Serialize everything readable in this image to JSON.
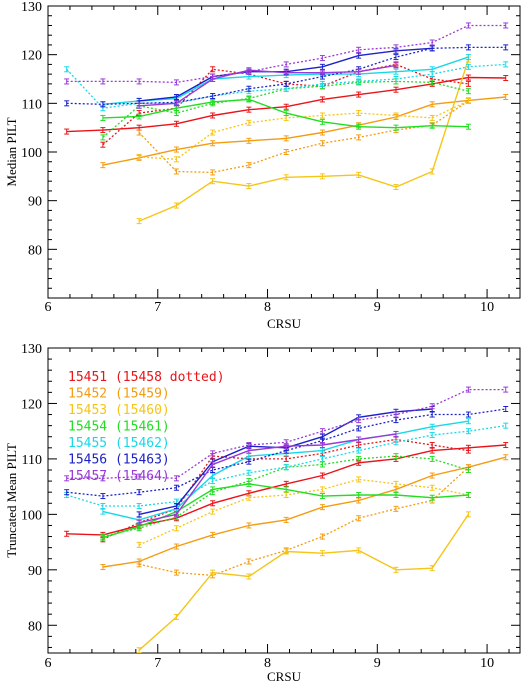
{
  "chart_data": [
    {
      "type": "line",
      "ylabel": "Median PILT",
      "xlabel": "CRSU",
      "xlim": [
        6.0,
        10.3
      ],
      "ylim": [
        70,
        130
      ],
      "xticks": [
        6,
        7,
        8,
        9,
        10
      ],
      "yticks": [
        80,
        90,
        100,
        110,
        120,
        130
      ],
      "grid": false,
      "legend_position": "none",
      "series": [
        {
          "color": "#e8141a",
          "style": "solid",
          "x": [
            6.17,
            6.5,
            6.83,
            7.17,
            7.5,
            7.83,
            8.17,
            8.5,
            8.83,
            9.17,
            9.5,
            9.83,
            10.17
          ],
          "y": [
            104.2,
            104.5,
            105.0,
            105.8,
            107.5,
            108.7,
            109.3,
            110.8,
            111.8,
            112.8,
            114.0,
            115.3,
            115.2
          ]
        },
        {
          "color": "#e8141a",
          "style": "dotted",
          "x": [
            6.5,
            6.83,
            7.17,
            7.5,
            7.83,
            8.17,
            8.5,
            8.83,
            9.17,
            9.5,
            9.83
          ],
          "y": [
            101.5,
            108.0,
            109.0,
            117.0,
            116.0,
            114.0,
            113.5,
            116.5,
            118.0,
            115.0,
            114.0
          ]
        },
        {
          "color": "#f39c12",
          "style": "solid",
          "x": [
            6.5,
            6.83,
            7.17,
            7.5,
            7.83,
            8.17,
            8.5,
            8.83,
            9.17,
            9.5,
            9.83,
            10.17
          ],
          "y": [
            97.3,
            98.8,
            100.5,
            101.8,
            102.3,
            102.8,
            104.0,
            105.5,
            107.2,
            109.8,
            110.6,
            111.3
          ]
        },
        {
          "color": "#f39c12",
          "style": "dotted",
          "x": [
            6.83,
            7.17,
            7.5,
            7.83,
            8.17,
            8.5,
            8.83,
            9.17,
            9.5,
            9.83
          ],
          "y": [
            104.0,
            96.0,
            95.8,
            97.3,
            100.0,
            101.8,
            103.0,
            104.5,
            105.5,
            110.5
          ]
        },
        {
          "color": "#f5c518",
          "style": "solid",
          "x": [
            6.83,
            7.17,
            7.5,
            7.83,
            8.17,
            8.5,
            8.83,
            9.17,
            9.5,
            9.83
          ],
          "y": [
            85.8,
            89.0,
            94.0,
            93.0,
            94.8,
            95.0,
            95.3,
            92.8,
            96.0,
            119.0
          ]
        },
        {
          "color": "#f5c518",
          "style": "dotted",
          "x": [
            6.83,
            7.17,
            7.5,
            7.83,
            8.17,
            8.5,
            8.83,
            9.17,
            9.5,
            9.83
          ],
          "y": [
            99.0,
            98.5,
            104.0,
            106.0,
            107.0,
            107.5,
            108.0,
            107.5,
            107.0,
            110.5
          ]
        },
        {
          "color": "#22dd22",
          "style": "solid",
          "x": [
            6.5,
            6.83,
            7.17,
            7.5,
            7.83,
            8.17,
            8.5,
            8.83,
            9.17,
            9.5,
            9.83
          ],
          "y": [
            107.0,
            107.3,
            109.0,
            110.3,
            110.8,
            108.0,
            106.2,
            105.2,
            105.0,
            105.4,
            105.2
          ]
        },
        {
          "color": "#22dd22",
          "style": "dotted",
          "x": [
            6.5,
            6.83,
            7.17,
            7.5,
            7.83,
            8.17,
            8.5,
            8.83,
            9.17,
            9.5,
            9.83
          ],
          "y": [
            103.0,
            109.5,
            108.0,
            110.0,
            111.0,
            113.0,
            113.5,
            114.3,
            114.5,
            114.3,
            112.5
          ]
        },
        {
          "color": "#18d8e8",
          "style": "solid",
          "x": [
            6.5,
            6.83,
            7.17,
            7.5,
            7.83,
            8.17,
            8.5,
            8.83,
            9.17,
            9.5,
            9.83
          ],
          "y": [
            109.8,
            110.5,
            111.0,
            115.0,
            115.5,
            115.8,
            116.0,
            116.0,
            116.5,
            117.0,
            119.5
          ]
        },
        {
          "color": "#18d8e8",
          "style": "dotted",
          "x": [
            6.17,
            6.5,
            6.83,
            7.17,
            7.5,
            7.83,
            8.17,
            8.5,
            8.83,
            9.17,
            9.5,
            9.83,
            10.17
          ],
          "y": [
            117.0,
            109.0,
            110.0,
            110.0,
            111.5,
            112.5,
            113.0,
            114.0,
            114.5,
            115.0,
            116.0,
            117.5,
            118.0
          ]
        },
        {
          "color": "#1c22c8",
          "style": "solid",
          "x": [
            6.83,
            7.17,
            7.5,
            7.83,
            8.17,
            8.5,
            8.83,
            9.17,
            9.5
          ],
          "y": [
            110.5,
            111.3,
            115.5,
            116.5,
            116.5,
            117.5,
            119.8,
            120.8,
            121.3
          ]
        },
        {
          "color": "#1c22c8",
          "style": "dotted",
          "x": [
            6.17,
            6.5,
            6.83,
            7.17,
            7.5,
            7.83,
            8.17,
            8.5,
            8.83,
            9.17,
            9.5,
            9.83,
            10.17
          ],
          "y": [
            110.0,
            109.8,
            110.0,
            110.2,
            111.5,
            113.0,
            114.0,
            115.5,
            117.0,
            119.5,
            121.3,
            121.5,
            121.5
          ]
        },
        {
          "color": "#9a3ad6",
          "style": "solid",
          "x": [
            6.83,
            7.17,
            7.5,
            7.83,
            8.17,
            8.5,
            8.83,
            9.17
          ],
          "y": [
            109.5,
            110.0,
            115.0,
            116.8,
            116.3,
            116.3,
            116.5,
            117.8
          ]
        },
        {
          "color": "#9a3ad6",
          "style": "dotted",
          "x": [
            6.17,
            6.5,
            6.83,
            7.17,
            7.5,
            7.83,
            8.17,
            8.5,
            8.83,
            9.17,
            9.5,
            9.83,
            10.17
          ],
          "y": [
            114.5,
            114.5,
            114.5,
            114.3,
            115.5,
            116.5,
            118.0,
            119.3,
            121.0,
            121.5,
            122.5,
            126.0,
            126.0
          ]
        }
      ]
    },
    {
      "type": "line",
      "ylabel": "Truncated Mean PILT",
      "xlabel": "CRSU",
      "xlim": [
        6.0,
        10.3
      ],
      "ylim": [
        75,
        130
      ],
      "xticks": [
        6,
        7,
        8,
        9,
        10
      ],
      "yticks": [
        80,
        90,
        100,
        110,
        120,
        130
      ],
      "grid": false,
      "legend_position": "top-left",
      "series": [
        {
          "name": "15451 (15458 dotted)",
          "color": "#e8141a",
          "style": "solid",
          "x": [
            6.17,
            6.5,
            6.83,
            7.17,
            7.5,
            7.83,
            8.17,
            8.5,
            8.83,
            9.17,
            9.5,
            9.83,
            10.17
          ],
          "y": [
            96.5,
            96.3,
            98.0,
            99.3,
            102.0,
            103.8,
            105.5,
            107.0,
            109.3,
            110.0,
            111.5,
            112.0,
            112.5
          ]
        },
        {
          "name": "",
          "color": "#e8141a",
          "style": "dotted",
          "x": [
            6.5,
            6.83,
            7.17,
            7.5,
            7.83,
            8.17,
            8.5,
            8.83,
            9.17,
            9.5,
            9.83
          ],
          "y": [
            95.5,
            98.5,
            101.0,
            110.5,
            110.0,
            110.0,
            111.0,
            112.5,
            113.5,
            112.5,
            111.5
          ]
        },
        {
          "name": "15452 (15459)",
          "color": "#f39c12",
          "style": "solid",
          "x": [
            6.5,
            6.83,
            7.17,
            7.5,
            7.83,
            8.17,
            8.5,
            8.83,
            9.17,
            9.5,
            9.83,
            10.17
          ],
          "y": [
            90.5,
            91.5,
            94.2,
            96.3,
            98.0,
            99.0,
            101.3,
            102.5,
            104.5,
            107.0,
            108.5,
            110.3
          ]
        },
        {
          "name": "",
          "color": "#f39c12",
          "style": "dotted",
          "x": [
            6.83,
            7.17,
            7.5,
            7.83,
            8.17,
            8.5,
            8.83,
            9.17,
            9.5,
            9.83
          ],
          "y": [
            91.0,
            89.5,
            89.0,
            91.5,
            93.5,
            96.0,
            99.3,
            101.0,
            102.5,
            108.5
          ]
        },
        {
          "name": "15453 (15460)",
          "color": "#f5c518",
          "style": "solid",
          "x": [
            6.83,
            7.17,
            7.5,
            7.83,
            8.17,
            8.5,
            8.83,
            9.17,
            9.5,
            9.83
          ],
          "y": [
            75.5,
            81.5,
            89.5,
            88.8,
            93.3,
            93.0,
            93.5,
            90.0,
            90.3,
            100.0
          ]
        },
        {
          "name": "",
          "color": "#f5c518",
          "style": "dotted",
          "x": [
            6.83,
            7.17,
            7.5,
            7.83,
            8.17,
            8.5,
            8.83,
            9.17,
            9.5,
            9.83
          ],
          "y": [
            94.5,
            97.5,
            100.5,
            103.0,
            103.5,
            104.5,
            106.3,
            105.5,
            104.8,
            103.5
          ]
        },
        {
          "name": "15454 (15461)",
          "color": "#22dd22",
          "style": "solid",
          "x": [
            6.5,
            6.83,
            7.17,
            7.5,
            7.83,
            8.17,
            8.5,
            8.83,
            9.17,
            9.5,
            9.83
          ],
          "y": [
            95.8,
            97.8,
            100.5,
            104.5,
            105.5,
            104.5,
            103.3,
            103.5,
            103.5,
            103.0,
            103.5
          ]
        },
        {
          "name": "",
          "color": "#22dd22",
          "style": "dotted",
          "x": [
            6.5,
            6.83,
            7.17,
            7.5,
            7.83,
            8.17,
            8.5,
            8.83,
            9.17,
            9.5,
            9.83
          ],
          "y": [
            96.0,
            97.5,
            99.5,
            104.0,
            106.0,
            108.5,
            109.0,
            110.0,
            110.5,
            110.0,
            108.0
          ]
        },
        {
          "name": "15455 (15462)",
          "color": "#18d8e8",
          "style": "solid",
          "x": [
            6.5,
            6.83,
            7.17,
            7.5,
            7.83,
            8.17,
            8.5,
            8.83,
            9.17,
            9.5,
            9.83
          ],
          "y": [
            100.5,
            99.0,
            101.0,
            107.0,
            110.5,
            111.0,
            111.5,
            113.5,
            114.5,
            115.8,
            116.8
          ]
        },
        {
          "name": "",
          "color": "#18d8e8",
          "style": "dotted",
          "x": [
            6.17,
            6.5,
            6.83,
            7.17,
            7.5,
            7.83,
            8.17,
            8.5,
            8.83,
            9.17,
            9.5,
            9.83,
            10.17
          ],
          "y": [
            103.5,
            101.5,
            101.5,
            102.3,
            106.0,
            107.5,
            108.5,
            110.0,
            111.5,
            113.0,
            114.3,
            115.0,
            116.0
          ]
        },
        {
          "name": "15456 (15463)",
          "color": "#1c22c8",
          "style": "solid",
          "x": [
            6.83,
            7.17,
            7.5,
            7.83,
            8.17,
            8.5,
            8.83,
            9.17,
            9.5
          ],
          "y": [
            100.0,
            101.5,
            109.5,
            112.3,
            112.0,
            114.0,
            117.5,
            118.5,
            119.0
          ]
        },
        {
          "name": "",
          "color": "#1c22c8",
          "style": "dotted",
          "x": [
            6.17,
            6.5,
            6.83,
            7.17,
            7.5,
            7.83,
            8.17,
            8.5,
            8.83,
            9.17,
            9.5,
            9.83,
            10.17
          ],
          "y": [
            104.0,
            103.3,
            104.0,
            104.8,
            108.0,
            109.5,
            111.5,
            113.3,
            115.5,
            117.0,
            118.0,
            118.0,
            119.0
          ]
        },
        {
          "name": "15457 (15464)",
          "color": "#9a3ad6",
          "style": "solid",
          "x": [
            6.83,
            7.17,
            7.5,
            7.83,
            8.17,
            8.5,
            8.83,
            9.17
          ],
          "y": [
            98.5,
            100.0,
            109.0,
            111.5,
            112.3,
            112.5,
            113.5,
            114.5
          ]
        },
        {
          "name": "",
          "color": "#9a3ad6",
          "style": "dotted",
          "x": [
            6.17,
            6.5,
            6.83,
            7.17,
            7.5,
            7.83,
            8.17,
            8.5,
            8.83,
            9.17,
            9.5,
            9.83,
            10.17
          ],
          "y": [
            106.5,
            106.5,
            106.8,
            106.5,
            111.0,
            112.5,
            113.0,
            115.0,
            117.0,
            118.0,
            119.5,
            122.5,
            122.5
          ]
        }
      ]
    }
  ]
}
